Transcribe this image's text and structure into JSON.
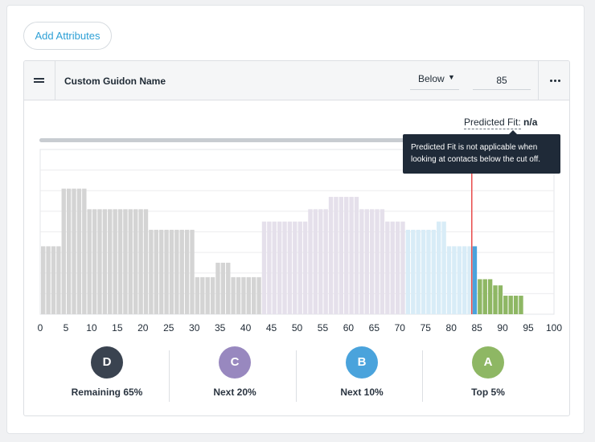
{
  "toolbar": {
    "add_attributes_label": "Add Attributes"
  },
  "attribute": {
    "name": "Custom Guidon Name",
    "operator": "Below",
    "cutoff_value": "85",
    "predicted_fit_label": "Predicted Fit:",
    "predicted_fit_value": "n/a",
    "tooltip": "Predicted Fit is not applicable when looking at contacts below the cut off."
  },
  "colors": {
    "tier_d": "#3a4350",
    "tier_c": "#9888bf",
    "tier_b": "#4aa3dc",
    "tier_a": "#8eb764",
    "cutoff_line": "#e84c4c",
    "accent": "#2ea0d6"
  },
  "chart_data": {
    "type": "bar",
    "title": "",
    "xlabel": "",
    "ylabel": "",
    "xlim": [
      0,
      100
    ],
    "ylim": [
      0,
      8
    ],
    "x_ticks": [
      "0",
      "5",
      "10",
      "15",
      "20",
      "25",
      "30",
      "35",
      "40",
      "45",
      "50",
      "55",
      "60",
      "65",
      "70",
      "75",
      "80",
      "85",
      "90",
      "95",
      "100"
    ],
    "cutoff": 84,
    "bins": [
      {
        "x": 0,
        "value": 3.3
      },
      {
        "x": 1,
        "value": 3.3
      },
      {
        "x": 2,
        "value": 3.3
      },
      {
        "x": 3,
        "value": 3.3
      },
      {
        "x": 4,
        "value": 6.1
      },
      {
        "x": 5,
        "value": 6.1
      },
      {
        "x": 6,
        "value": 6.1
      },
      {
        "x": 7,
        "value": 6.1
      },
      {
        "x": 8,
        "value": 6.1
      },
      {
        "x": 9,
        "value": 5.1
      },
      {
        "x": 10,
        "value": 5.1
      },
      {
        "x": 11,
        "value": 5.1
      },
      {
        "x": 12,
        "value": 5.1
      },
      {
        "x": 13,
        "value": 5.1
      },
      {
        "x": 14,
        "value": 5.1
      },
      {
        "x": 15,
        "value": 5.1
      },
      {
        "x": 16,
        "value": 5.1
      },
      {
        "x": 17,
        "value": 5.1
      },
      {
        "x": 18,
        "value": 5.1
      },
      {
        "x": 19,
        "value": 5.1
      },
      {
        "x": 20,
        "value": 5.1
      },
      {
        "x": 21,
        "value": 4.1
      },
      {
        "x": 22,
        "value": 4.1
      },
      {
        "x": 23,
        "value": 4.1
      },
      {
        "x": 24,
        "value": 4.1
      },
      {
        "x": 25,
        "value": 4.1
      },
      {
        "x": 26,
        "value": 4.1
      },
      {
        "x": 27,
        "value": 4.1
      },
      {
        "x": 28,
        "value": 4.1
      },
      {
        "x": 29,
        "value": 4.1
      },
      {
        "x": 30,
        "value": 1.8
      },
      {
        "x": 31,
        "value": 1.8
      },
      {
        "x": 32,
        "value": 1.8
      },
      {
        "x": 33,
        "value": 1.8
      },
      {
        "x": 34,
        "value": 2.5
      },
      {
        "x": 35,
        "value": 2.5
      },
      {
        "x": 36,
        "value": 2.5
      },
      {
        "x": 37,
        "value": 1.8
      },
      {
        "x": 38,
        "value": 1.8
      },
      {
        "x": 39,
        "value": 1.8
      },
      {
        "x": 40,
        "value": 1.8
      },
      {
        "x": 41,
        "value": 1.8
      },
      {
        "x": 42,
        "value": 1.8
      },
      {
        "x": 43,
        "value": 4.5
      },
      {
        "x": 44,
        "value": 4.5
      },
      {
        "x": 45,
        "value": 4.5
      },
      {
        "x": 46,
        "value": 4.5
      },
      {
        "x": 47,
        "value": 4.5
      },
      {
        "x": 48,
        "value": 4.5
      },
      {
        "x": 49,
        "value": 4.5
      },
      {
        "x": 50,
        "value": 4.5
      },
      {
        "x": 51,
        "value": 4.5
      },
      {
        "x": 52,
        "value": 5.1
      },
      {
        "x": 53,
        "value": 5.1
      },
      {
        "x": 54,
        "value": 5.1
      },
      {
        "x": 55,
        "value": 5.1
      },
      {
        "x": 56,
        "value": 5.7
      },
      {
        "x": 57,
        "value": 5.7
      },
      {
        "x": 58,
        "value": 5.7
      },
      {
        "x": 59,
        "value": 5.7
      },
      {
        "x": 60,
        "value": 5.7
      },
      {
        "x": 61,
        "value": 5.7
      },
      {
        "x": 62,
        "value": 5.1
      },
      {
        "x": 63,
        "value": 5.1
      },
      {
        "x": 64,
        "value": 5.1
      },
      {
        "x": 65,
        "value": 5.1
      },
      {
        "x": 66,
        "value": 5.1
      },
      {
        "x": 67,
        "value": 4.5
      },
      {
        "x": 68,
        "value": 4.5
      },
      {
        "x": 69,
        "value": 4.5
      },
      {
        "x": 70,
        "value": 4.5
      },
      {
        "x": 71,
        "value": 4.1
      },
      {
        "x": 72,
        "value": 4.1
      },
      {
        "x": 73,
        "value": 4.1
      },
      {
        "x": 74,
        "value": 4.1
      },
      {
        "x": 75,
        "value": 4.1
      },
      {
        "x": 76,
        "value": 4.1
      },
      {
        "x": 77,
        "value": 4.5
      },
      {
        "x": 78,
        "value": 4.5
      },
      {
        "x": 79,
        "value": 3.3
      },
      {
        "x": 80,
        "value": 3.3
      },
      {
        "x": 81,
        "value": 3.3
      },
      {
        "x": 82,
        "value": 3.3
      },
      {
        "x": 83,
        "value": 3.3
      },
      {
        "x": 84,
        "value": 3.3
      },
      {
        "x": 85,
        "value": 1.7
      },
      {
        "x": 86,
        "value": 1.7
      },
      {
        "x": 87,
        "value": 1.7
      },
      {
        "x": 88,
        "value": 1.4
      },
      {
        "x": 89,
        "value": 1.4
      },
      {
        "x": 90,
        "value": 0.9
      },
      {
        "x": 91,
        "value": 0.9
      },
      {
        "x": 92,
        "value": 0.9
      },
      {
        "x": 93,
        "value": 0.9
      }
    ],
    "segments": [
      {
        "tier": "D",
        "from": 0,
        "to": 43,
        "color_active": "#d4d4d4",
        "color_below": "#d4d4d4"
      },
      {
        "tier": "C",
        "from": 43,
        "to": 71,
        "color_active": "#e5e0eb",
        "color_below": "#e5e0eb"
      },
      {
        "tier": "B",
        "from": 71,
        "to": 85,
        "color_active": "#4aa3dc",
        "color_below": "#d8ecf7"
      },
      {
        "tier": "A",
        "from": 85,
        "to": 94,
        "color_active": "#8eb764",
        "color_below": "#dde9cf"
      }
    ]
  },
  "tiers": [
    {
      "letter": "D",
      "label": "Remaining 65%"
    },
    {
      "letter": "C",
      "label": "Next 20%"
    },
    {
      "letter": "B",
      "label": "Next 10%"
    },
    {
      "letter": "A",
      "label": "Top 5%"
    }
  ]
}
